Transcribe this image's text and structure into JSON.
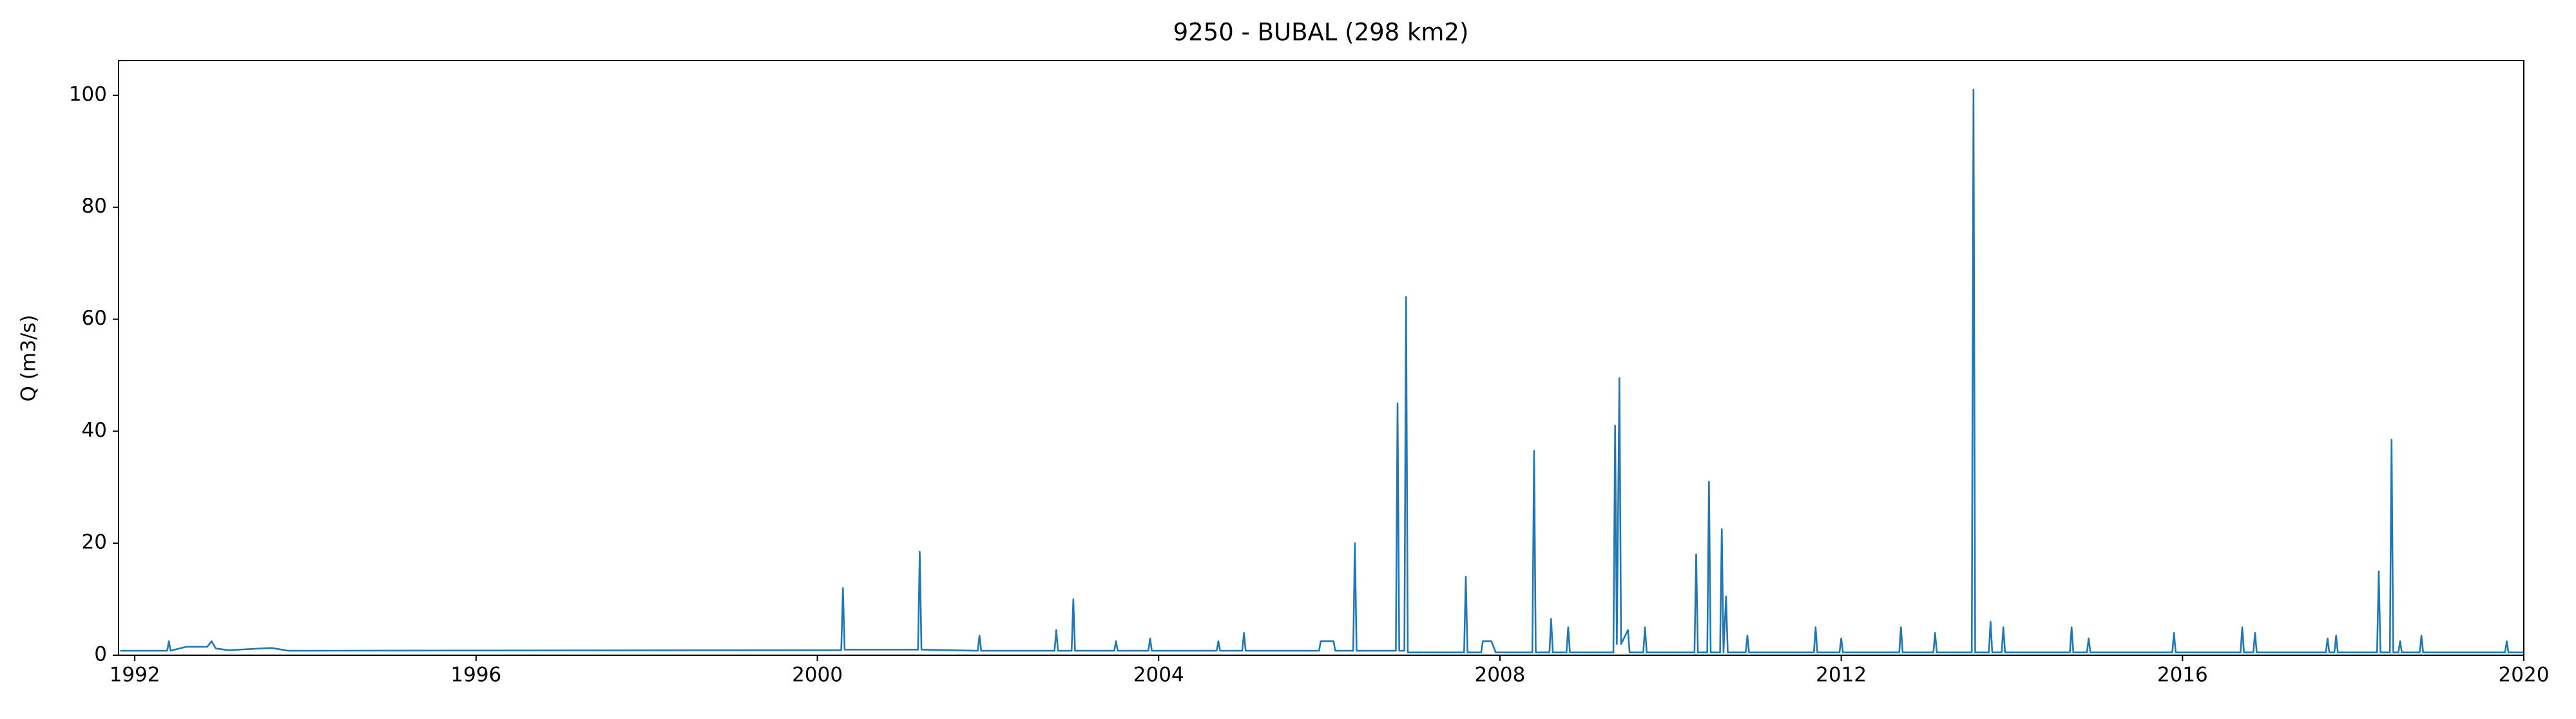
{
  "chart_data": {
    "type": "line",
    "title": "9250 - BUBAL (298 km2)",
    "y_label": "Q (m3/s)",
    "xlim": [
      1991.81,
      2020
    ],
    "ylim": [
      0,
      106.2
    ],
    "xticks": [
      1992,
      1996,
      2000,
      2004,
      2008,
      2012,
      2016,
      2020
    ],
    "yticks": [
      0,
      20,
      40,
      60,
      80,
      100
    ],
    "grid": false,
    "series": [
      {
        "name": "Q",
        "color": "#1f77b4",
        "x": [
          1991.83,
          1992.38,
          1992.4,
          1992.42,
          1992.6,
          1992.85,
          1992.9,
          1992.95,
          1993.1,
          1993.6,
          1993.8,
          2000.28,
          2000.3,
          2000.32,
          2001.18,
          2001.2,
          2001.22,
          2001.88,
          2001.9,
          2001.92,
          2002.78,
          2002.8,
          2002.82,
          2002.98,
          2003.0,
          2003.02,
          2003.48,
          2003.5,
          2003.52,
          2003.88,
          2003.9,
          2003.92,
          2004.68,
          2004.7,
          2004.72,
          2004.98,
          2005.0,
          2005.02,
          2005.88,
          2005.9,
          2006.05,
          2006.07,
          2006.28,
          2006.3,
          2006.32,
          2006.78,
          2006.8,
          2006.82,
          2006.88,
          2006.9,
          2006.92,
          2007.58,
          2007.6,
          2007.62,
          2007.78,
          2007.8,
          2007.9,
          2007.95,
          2008.38,
          2008.4,
          2008.42,
          2008.58,
          2008.6,
          2008.62,
          2008.78,
          2008.8,
          2008.82,
          2009.33,
          2009.35,
          2009.37,
          2009.4,
          2009.42,
          2009.5,
          2009.52,
          2009.68,
          2009.7,
          2009.72,
          2010.28,
          2010.3,
          2010.32,
          2010.43,
          2010.45,
          2010.47,
          2010.58,
          2010.6,
          2010.62,
          2010.65,
          2010.67,
          2010.88,
          2010.9,
          2010.92,
          2011.68,
          2011.7,
          2011.72,
          2011.98,
          2012.0,
          2012.02,
          2012.68,
          2012.7,
          2012.72,
          2013.08,
          2013.1,
          2013.12,
          2013.53,
          2013.55,
          2013.57,
          2013.73,
          2013.75,
          2013.77,
          2013.88,
          2013.9,
          2013.92,
          2014.68,
          2014.7,
          2014.72,
          2014.88,
          2014.9,
          2014.92,
          2015.88,
          2015.9,
          2015.92,
          2016.68,
          2016.7,
          2016.72,
          2016.83,
          2016.85,
          2016.87,
          2017.68,
          2017.7,
          2017.72,
          2017.78,
          2017.8,
          2017.82,
          2018.28,
          2018.3,
          2018.32,
          2018.43,
          2018.45,
          2018.47,
          2018.53,
          2018.55,
          2018.57,
          2018.78,
          2018.8,
          2018.82,
          2019.78,
          2019.8,
          2019.82,
          2020.0
        ],
        "values": [
          0.8,
          0.8,
          2.5,
          0.8,
          1.5,
          1.5,
          2.5,
          1.2,
          0.9,
          1.3,
          0.8,
          0.9,
          12,
          1.0,
          1.0,
          18.5,
          1.0,
          0.8,
          3.5,
          0.8,
          0.8,
          4.5,
          0.8,
          0.8,
          10,
          0.8,
          0.8,
          2.5,
          0.8,
          0.8,
          3,
          0.8,
          0.8,
          2.5,
          0.8,
          0.8,
          4,
          0.8,
          0.8,
          2.5,
          2.5,
          0.8,
          0.8,
          20,
          0.8,
          0.8,
          45,
          0.8,
          0.8,
          64,
          0.5,
          0.5,
          14,
          0.5,
          0.5,
          2.5,
          2.5,
          0.5,
          0.5,
          36.5,
          0.5,
          0.5,
          6.5,
          0.5,
          0.5,
          5,
          0.5,
          0.5,
          41,
          2,
          49.5,
          2,
          4.5,
          0.5,
          0.5,
          5,
          0.5,
          0.5,
          18,
          0.5,
          0.5,
          31,
          0.5,
          0.5,
          22.5,
          0.5,
          10.5,
          0.5,
          0.5,
          3.5,
          0.5,
          0.5,
          5,
          0.5,
          0.5,
          3,
          0.5,
          0.5,
          5,
          0.5,
          0.5,
          4,
          0.5,
          0.5,
          101,
          0.5,
          0.5,
          6,
          0.5,
          0.5,
          5,
          0.5,
          0.5,
          5,
          0.5,
          0.5,
          3,
          0.5,
          0.5,
          4,
          0.5,
          0.5,
          5,
          0.5,
          0.5,
          4,
          0.5,
          0.5,
          3,
          0.5,
          0.5,
          3.5,
          0.5,
          0.5,
          15,
          0.5,
          0.5,
          38.5,
          0.5,
          0.5,
          2.5,
          0.5,
          0.5,
          3.5,
          0.5,
          0.5,
          2.5,
          0.5,
          0.5
        ]
      }
    ]
  }
}
